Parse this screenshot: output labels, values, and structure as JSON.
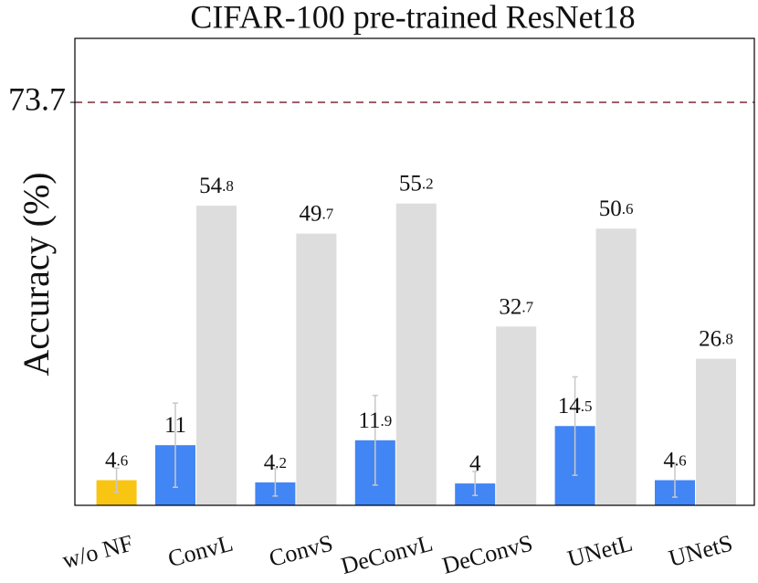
{
  "chart_data": {
    "type": "bar",
    "title": "CIFAR-100 pre-trained ResNet18",
    "y_label": "Accuracy (%)",
    "categories": [
      "w/o NF",
      "ConvL",
      "ConvS",
      "DeConvL",
      "DeConvS",
      "UNetL",
      "UNetS"
    ],
    "series": [
      {
        "colors": [
          "#f9c513",
          "#4285f4",
          "#4285f4",
          "#4285f4",
          "#4285f4",
          "#4285f4",
          "#4285f4"
        ],
        "values": [
          4.6,
          11.0,
          4.2,
          11.9,
          4.0,
          14.5,
          4.6
        ],
        "errors": [
          2.2,
          7.7,
          2.5,
          8.2,
          2.2,
          9.0,
          3.1
        ]
      },
      {
        "color": "#dddddd",
        "values": [
          null,
          54.8,
          49.7,
          55.2,
          32.7,
          50.6,
          26.8
        ]
      }
    ],
    "error_color": "#c8c8c8",
    "ylim": [
      0,
      85.4
    ],
    "yticks": [
      73.7
    ],
    "grid": "dashed",
    "grid_color": "#7a2b3a"
  }
}
